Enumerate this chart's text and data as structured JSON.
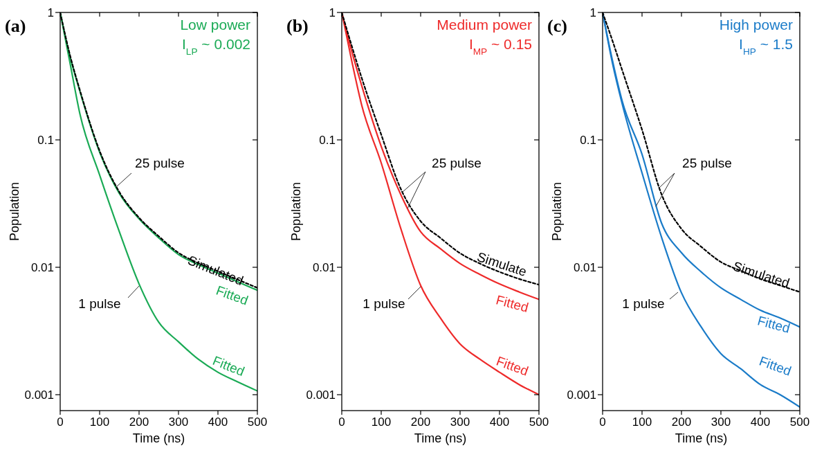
{
  "chart_data": [
    {
      "type": "line",
      "title": "(a)",
      "xlabel": "Time (ns)",
      "ylabel": "Population",
      "log": "y",
      "xlim": [
        0,
        500
      ],
      "ylim": [
        0.00075,
        1
      ],
      "xticks": [
        0,
        100,
        200,
        300,
        400,
        500
      ],
      "yticks": [
        0.001,
        0.01,
        0.1,
        1
      ],
      "grid": false,
      "x": [
        0,
        25,
        50,
        100,
        150,
        200,
        250,
        300,
        350,
        400,
        450,
        500
      ],
      "series": [
        {
          "color": "#1aaa55",
          "line_style": "solid",
          "values": [
            1,
            0.4,
            0.16,
            0.053,
            0.019,
            0.0074,
            0.0037,
            0.0026,
            0.0019,
            0.0015,
            0.00126,
            0.00107
          ]
        },
        {
          "color": "#1aaa55",
          "line_style": "solid",
          "values": [
            1,
            0.45,
            0.24,
            0.08,
            0.038,
            0.024,
            0.017,
            0.0126,
            0.0105,
            0.009,
            0.0077,
            0.0066
          ]
        },
        {
          "color": "#000000",
          "line_style": "dashed",
          "values": [
            1,
            0.46,
            0.245,
            0.082,
            0.039,
            0.0245,
            0.0175,
            0.013,
            0.0108,
            0.0093,
            0.008,
            0.0069
          ]
        }
      ],
      "annotations": [
        "Low power",
        "I$_{LP}$ ~ 0.002",
        "25 pulse",
        "1 pulse",
        "Simulated",
        "Fitted",
        "Fitted"
      ]
    },
    {
      "type": "line",
      "title": "(b)",
      "xlabel": "Time (ns)",
      "ylabel": "Population",
      "log": "y",
      "xlim": [
        0,
        500
      ],
      "ylim": [
        0.00075,
        1
      ],
      "xticks": [
        0,
        100,
        200,
        300,
        400,
        500
      ],
      "yticks": [
        0.001,
        0.01,
        0.1,
        1
      ],
      "grid": false,
      "x": [
        0,
        25,
        50,
        100,
        150,
        200,
        250,
        300,
        350,
        400,
        450,
        500
      ],
      "series": [
        {
          "color": "#ee2a2a",
          "line_style": "solid",
          "values": [
            1,
            0.42,
            0.19,
            0.066,
            0.02,
            0.0072,
            0.004,
            0.0025,
            0.0019,
            0.0015,
            0.0012,
            0.001
          ]
        },
        {
          "color": "#ee2a2a",
          "line_style": "solid",
          "values": [
            1,
            0.5,
            0.27,
            0.089,
            0.037,
            0.019,
            0.014,
            0.0107,
            0.0088,
            0.0074,
            0.0064,
            0.0056
          ]
        },
        {
          "color": "#000000",
          "line_style": "dashed",
          "values": [
            1,
            0.55,
            0.31,
            0.11,
            0.041,
            0.023,
            0.017,
            0.0129,
            0.0107,
            0.0092,
            0.0081,
            0.0073
          ]
        }
      ],
      "annotations": [
        "Medium power",
        "I$_{MP}$ ~ 0.15",
        {
          "text": "25 pulse",
          "x": 167,
          "y": 0.029
        },
        "1 pulse",
        "Simulate",
        "Fitted",
        "Fitted"
      ]
    },
    {
      "type": "line",
      "title": "(c)",
      "xlabel": "Time (ns)",
      "ylabel": "Population",
      "log": "y",
      "xlim": [
        0,
        500
      ],
      "ylim": [
        0.00075,
        1
      ],
      "xticks": [
        0,
        100,
        200,
        300,
        400,
        500
      ],
      "yticks": [
        0.001,
        0.01,
        0.1,
        1
      ],
      "grid": false,
      "x": [
        0,
        25,
        50,
        100,
        150,
        200,
        250,
        300,
        350,
        400,
        450,
        500
      ],
      "series": [
        {
          "color": "#1a7bc8",
          "line_style": "solid",
          "values": [
            1,
            0.4,
            0.19,
            0.055,
            0.017,
            0.0063,
            0.0034,
            0.0021,
            0.0016,
            0.0012,
            0.001,
            0.0008
          ]
        },
        {
          "color": "#1a7bc8",
          "line_style": "solid",
          "values": [
            1,
            0.42,
            0.2,
            0.077,
            0.022,
            0.013,
            0.0092,
            0.0069,
            0.0056,
            0.0046,
            0.004,
            0.0034
          ]
        },
        {
          "color": "#000000",
          "line_style": "dashed",
          "values": [
            1,
            0.6,
            0.35,
            0.12,
            0.037,
            0.02,
            0.0145,
            0.011,
            0.0094,
            0.0081,
            0.0072,
            0.0064
          ]
        }
      ],
      "annotations": [
        "High power",
        "I$_{HP}$ ~ 1.5",
        {
          "text": "25 pulse",
          "x": 135,
          "y": 0.03
        },
        "1 pulse",
        "Simulated",
        "Fitted",
        "Fitted"
      ]
    }
  ]
}
